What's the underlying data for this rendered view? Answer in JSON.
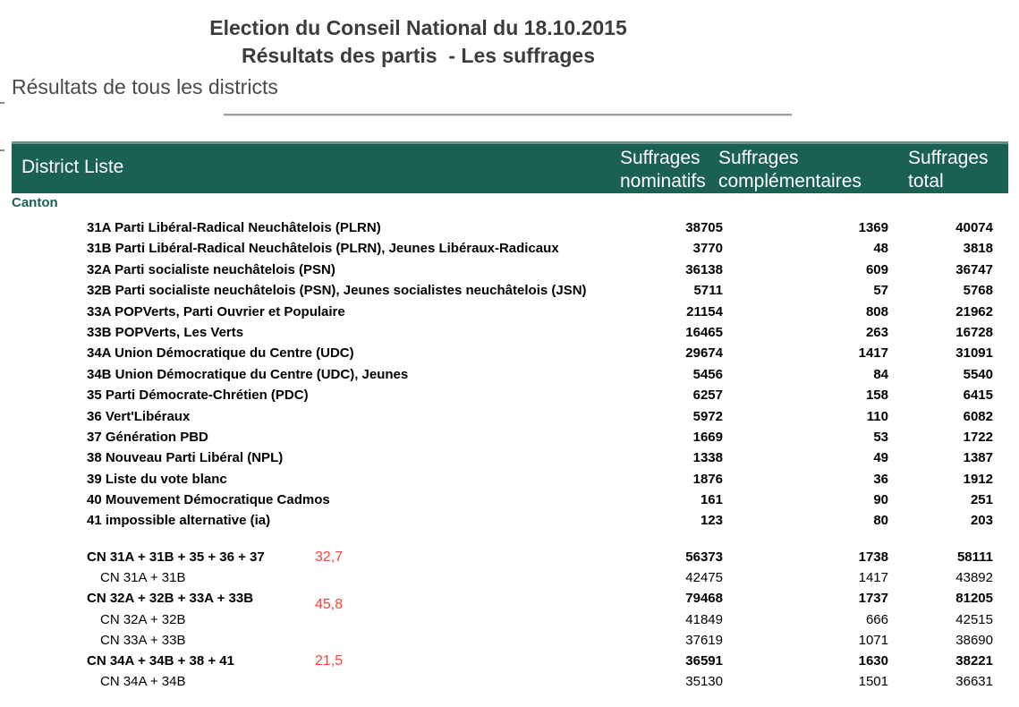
{
  "page": {
    "title_line1": "Election du Conseil National du 18.10.2015",
    "title_line2": "Résultats des partis  - Les suffrages",
    "subtitle": "Résultats de tous les districts"
  },
  "table": {
    "header": {
      "district_liste": "District Liste",
      "col_nominatifs": {
        "line1": "Suffrages",
        "line2": "nominatifs"
      },
      "col_complementaires": {
        "line1": "Suffrages",
        "line2": "complémentaires"
      },
      "col_total": {
        "line1": "Suffrages",
        "line2": "total"
      }
    },
    "section_label": "Canton",
    "rows": [
      {
        "label": "31A Parti Libéral-Radical Neuchâtelois (PLRN)",
        "nominatifs": "38705",
        "complementaires": "1369",
        "total": "40074"
      },
      {
        "label": "31B Parti Libéral-Radical Neuchâtelois (PLRN), Jeunes Libéraux-Radicaux",
        "nominatifs": "3770",
        "complementaires": "48",
        "total": "3818"
      },
      {
        "label": "32A Parti socialiste neuchâtelois (PSN)",
        "nominatifs": "36138",
        "complementaires": "609",
        "total": "36747"
      },
      {
        "label": "32B Parti socialiste neuchâtelois (PSN), Jeunes socialistes neuchâtelois (JSN)",
        "nominatifs": "5711",
        "complementaires": "57",
        "total": "5768"
      },
      {
        "label": "33A POPVerts, Parti Ouvrier et Populaire",
        "nominatifs": "21154",
        "complementaires": "808",
        "total": "21962"
      },
      {
        "label": "33B POPVerts, Les Verts",
        "nominatifs": "16465",
        "complementaires": "263",
        "total": "16728"
      },
      {
        "label": "34A Union Démocratique du Centre (UDC)",
        "nominatifs": "29674",
        "complementaires": "1417",
        "total": "31091"
      },
      {
        "label": "34B Union Démocratique du Centre (UDC), Jeunes",
        "nominatifs": "5456",
        "complementaires": "84",
        "total": "5540"
      },
      {
        "label": "35 Parti Démocrate-Chrétien (PDC)",
        "nominatifs": "6257",
        "complementaires": "158",
        "total": "6415"
      },
      {
        "label": "36 Vert'Libéraux",
        "nominatifs": "5972",
        "complementaires": "110",
        "total": "6082"
      },
      {
        "label": "37 Génération PBD",
        "nominatifs": "1669",
        "complementaires": "53",
        "total": "1722"
      },
      {
        "label": "38 Nouveau Parti Libéral (NPL)",
        "nominatifs": "1338",
        "complementaires": "49",
        "total": "1387"
      },
      {
        "label": "39 Liste du vote blanc",
        "nominatifs": "1876",
        "complementaires": "36",
        "total": "1912"
      },
      {
        "label": "40 Mouvement Démocratique Cadmos",
        "nominatifs": "161",
        "complementaires": "90",
        "total": "251"
      },
      {
        "label": "41 impossible alternative (ia)",
        "nominatifs": "123",
        "complementaires": "80",
        "total": "203"
      }
    ],
    "summary_rows": [
      {
        "label": "CN 31A + 31B + 35 + 36 + 37",
        "bold": true,
        "pct": "32,7",
        "nominatifs": "56373",
        "complementaires": "1738",
        "total": "58111"
      },
      {
        "label": "CN 31A + 31B",
        "indent": true,
        "nominatifs": "42475",
        "complementaires": "1417",
        "total": "43892"
      },
      {
        "label": "CN 32A + 32B + 33A + 33B",
        "bold": true,
        "pct": "45,8",
        "pct_offset": true,
        "nominatifs": "79468",
        "complementaires": "1737",
        "total": "81205"
      },
      {
        "label": "CN 32A + 32B",
        "indent": true,
        "nominatifs": "41849",
        "complementaires": "666",
        "total": "42515"
      },
      {
        "label": "CN 33A + 33B",
        "indent": true,
        "nominatifs": "37619",
        "complementaires": "1071",
        "total": "38690"
      },
      {
        "label": "CN 34A + 34B + 38 + 41",
        "bold": true,
        "pct": "21,5",
        "nominatifs": "36591",
        "complementaires": "1630",
        "total": "38221"
      },
      {
        "label": "CN 34A + 34B",
        "indent": true,
        "nominatifs": "35130",
        "complementaires": "1501",
        "total": "36631"
      }
    ]
  },
  "colors": {
    "header_bg": "#1A6055",
    "section_green": "#1A6055",
    "pct_red": "#FB4238",
    "title_gray": "#3C3C3C",
    "subtitle_gray": "#4A4A4A"
  }
}
